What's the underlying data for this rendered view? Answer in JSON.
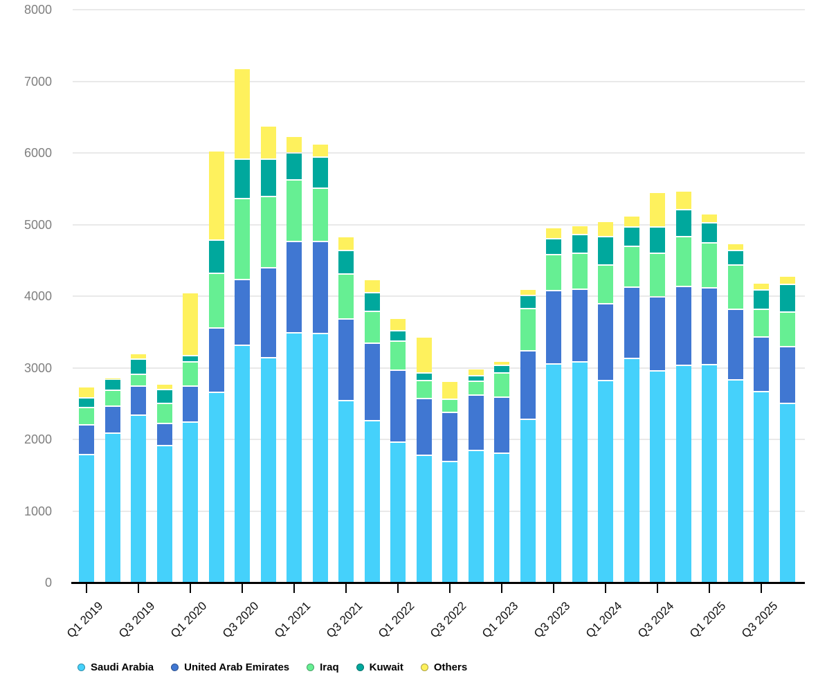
{
  "chart_data": {
    "type": "bar",
    "stacked": true,
    "title": "",
    "xlabel": "",
    "ylabel": "",
    "ylim": [
      0,
      8000
    ],
    "y_ticks": [
      0,
      1000,
      2000,
      3000,
      4000,
      5000,
      6000,
      7000,
      8000
    ],
    "grid": true,
    "legend_position": "bottom",
    "categories": [
      "Q1 2019",
      "Q2 2019",
      "Q3 2019",
      "Q4 2019",
      "Q1 2020",
      "Q2 2020",
      "Q3 2020",
      "Q4 2020",
      "Q1 2021",
      "Q2 2021",
      "Q3 2021",
      "Q4 2021",
      "Q1 2022",
      "Q2 2022",
      "Q3 2022",
      "Q4 2022",
      "Q1 2023",
      "Q2 2023",
      "Q3 2023",
      "Q4 2023",
      "Q1 2024",
      "Q2 2024",
      "Q3 2024",
      "Q4 2024",
      "Q1 2025",
      "Q2 2025",
      "Q3 2025",
      "Q4 2025"
    ],
    "x_tick_labels": [
      "Q1 2019",
      "Q3 2019",
      "Q1 2020",
      "Q3 2020",
      "Q1 2021",
      "Q3 2021",
      "Q1 2022",
      "Q3 2022",
      "Q1 2023",
      "Q3 2023",
      "Q1 2024",
      "Q3 2024",
      "Q1 2025",
      "Q3 2025"
    ],
    "series": [
      {
        "name": "Saudi Arabia",
        "color": "#45d1fb",
        "values": [
          1790,
          2090,
          2340,
          1915,
          2240,
          2660,
          3310,
          3140,
          3490,
          3480,
          2540,
          2260,
          1960,
          1780,
          1690,
          1850,
          1810,
          2280,
          3050,
          3080,
          2820,
          3130,
          2960,
          3030,
          3040,
          2830,
          2670,
          2500
        ]
      },
      {
        "name": "United Arab Emirates",
        "color": "#4077d2",
        "values": [
          410,
          370,
          400,
          305,
          500,
          900,
          920,
          1260,
          1270,
          1280,
          1140,
          1080,
          1010,
          790,
          690,
          770,
          780,
          960,
          1025,
          1020,
          1070,
          1000,
          1030,
          1110,
          1080,
          990,
          760,
          790
        ]
      },
      {
        "name": "Iraq",
        "color": "#66ef93",
        "values": [
          245,
          230,
          170,
          285,
          340,
          760,
          1130,
          990,
          860,
          750,
          630,
          450,
          400,
          255,
          180,
          190,
          340,
          590,
          505,
          500,
          540,
          570,
          610,
          690,
          620,
          610,
          390,
          490
        ]
      },
      {
        "name": "Kuwait",
        "color": "#00a89d",
        "values": [
          135,
          150,
          210,
          195,
          90,
          460,
          550,
          520,
          380,
          430,
          330,
          260,
          150,
          100,
          0,
          80,
          100,
          180,
          220,
          260,
          400,
          270,
          370,
          380,
          280,
          210,
          270,
          380
        ]
      },
      {
        "name": "Others",
        "color": "#fef15d",
        "values": [
          150,
          20,
          80,
          75,
          880,
          1250,
          1270,
          470,
          230,
          190,
          190,
          180,
          170,
          505,
          250,
          100,
          60,
          90,
          160,
          130,
          210,
          150,
          480,
          260,
          130,
          90,
          90,
          120
        ]
      }
    ]
  },
  "colors": {
    "background": "#ffffff",
    "grid": "#e9e9e9",
    "axis": "#000000",
    "y_label": "#7f7f7f",
    "x_label": "#111111",
    "legend_dot_border": "rgba(0,0,0,0.32)"
  }
}
